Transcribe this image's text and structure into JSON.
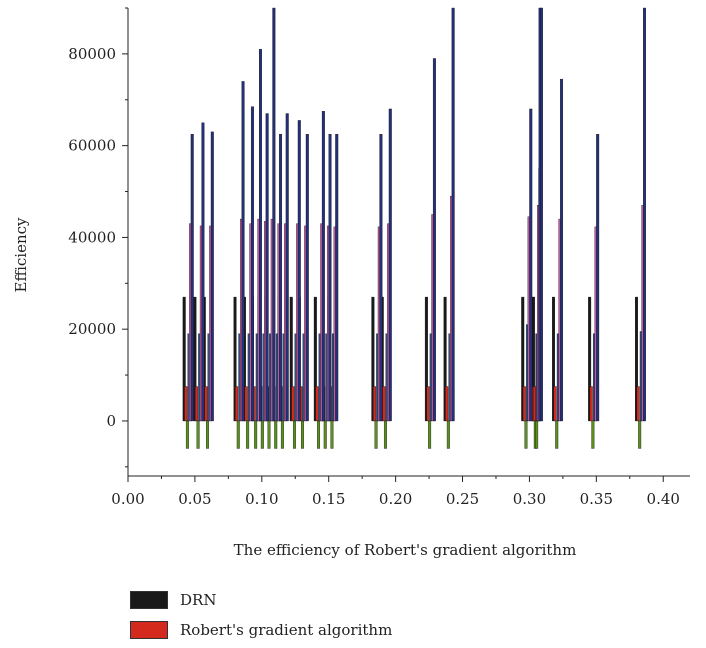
{
  "chart_data": {
    "type": "bar",
    "title": "",
    "xlabel": "The efficiency of Robert's gradient algorithm",
    "ylabel": "Efficiency",
    "xlim": [
      0.0,
      0.42
    ],
    "ylim": [
      -12000,
      90000
    ],
    "x_ticks": [
      "0.00",
      "0.05",
      "0.10",
      "0.15",
      "0.20",
      "0.25",
      "0.30",
      "0.35",
      "0.40"
    ],
    "y_ticks": [
      "0",
      "20000",
      "40000",
      "60000",
      "80000"
    ],
    "grid": false,
    "legend_position": "bottom-left",
    "bar_offsets": [
      0,
      0.0012,
      0.0024,
      0.0036,
      0.0048,
      0.006
    ],
    "x": [
      0.042,
      0.05,
      0.057,
      0.08,
      0.087,
      0.093,
      0.098,
      0.103,
      0.108,
      0.113,
      0.122,
      0.128,
      0.14,
      0.145,
      0.15,
      0.183,
      0.19,
      0.223,
      0.237,
      0.295,
      0.302,
      0.303,
      0.318,
      0.345,
      0.38
    ],
    "series": [
      {
        "name": "DRN",
        "color": "#1a1a1a",
        "values": [
          27000,
          27000,
          27000,
          27000,
          27000,
          27000,
          27000,
          27000,
          27000,
          27000,
          27000,
          27000,
          27000,
          27000,
          27000,
          27000,
          27000,
          27000,
          27000,
          27000,
          27000,
          27000,
          27000,
          27000,
          27000
        ]
      },
      {
        "name": "Robert's gradient algorithm",
        "color": "#d42a1e",
        "values": [
          7500,
          7500,
          7500,
          7500,
          7500,
          7500,
          7500,
          7500,
          7500,
          7500,
          7500,
          7500,
          7500,
          7500,
          7500,
          7500,
          7500,
          7500,
          7500,
          7500,
          7500,
          7500,
          7500,
          7500,
          7500
        ]
      },
      {
        "color": "#5a8f1e",
        "values": [
          -6000,
          -6000,
          -6000,
          -6000,
          -6000,
          -6000,
          -6000,
          -6000,
          -6000,
          -6000,
          -6000,
          -6000,
          -6000,
          -6000,
          -6000,
          -6000,
          -6000,
          -6000,
          -6000,
          -6000,
          -6000,
          -6000,
          -6000,
          -6000,
          -6000
        ]
      },
      {
        "color": "#2f4f8a",
        "values": [
          19000,
          19000,
          19000,
          19000,
          19000,
          19000,
          19000,
          19000,
          19000,
          19000,
          19000,
          19000,
          19000,
          19000,
          19000,
          19000,
          19000,
          19000,
          19000,
          21000,
          19000,
          19000,
          19000,
          19000,
          19500
        ]
      },
      {
        "color": "#c25ca0",
        "values": [
          43000,
          42500,
          42500,
          44000,
          43000,
          44000,
          43500,
          44000,
          43000,
          43000,
          43000,
          42500,
          43000,
          42500,
          42300,
          42300,
          43000,
          45000,
          49000,
          44500,
          47000,
          55000,
          44000,
          42300,
          47000
        ]
      },
      {
        "color": "#25307a",
        "values": [
          62500,
          65000,
          63000,
          74000,
          68500,
          81000,
          67000,
          90000,
          62500,
          67000,
          65500,
          62500,
          67500,
          62500,
          62500,
          62500,
          68000,
          79000,
          90000,
          68000,
          90000,
          90000,
          74500,
          62500,
          90000
        ]
      }
    ]
  },
  "legend": {
    "items": [
      {
        "label": "DRN",
        "color": "#1a1a1a"
      },
      {
        "label": "Robert's gradient algorithm",
        "color": "#d42a1e"
      }
    ]
  }
}
